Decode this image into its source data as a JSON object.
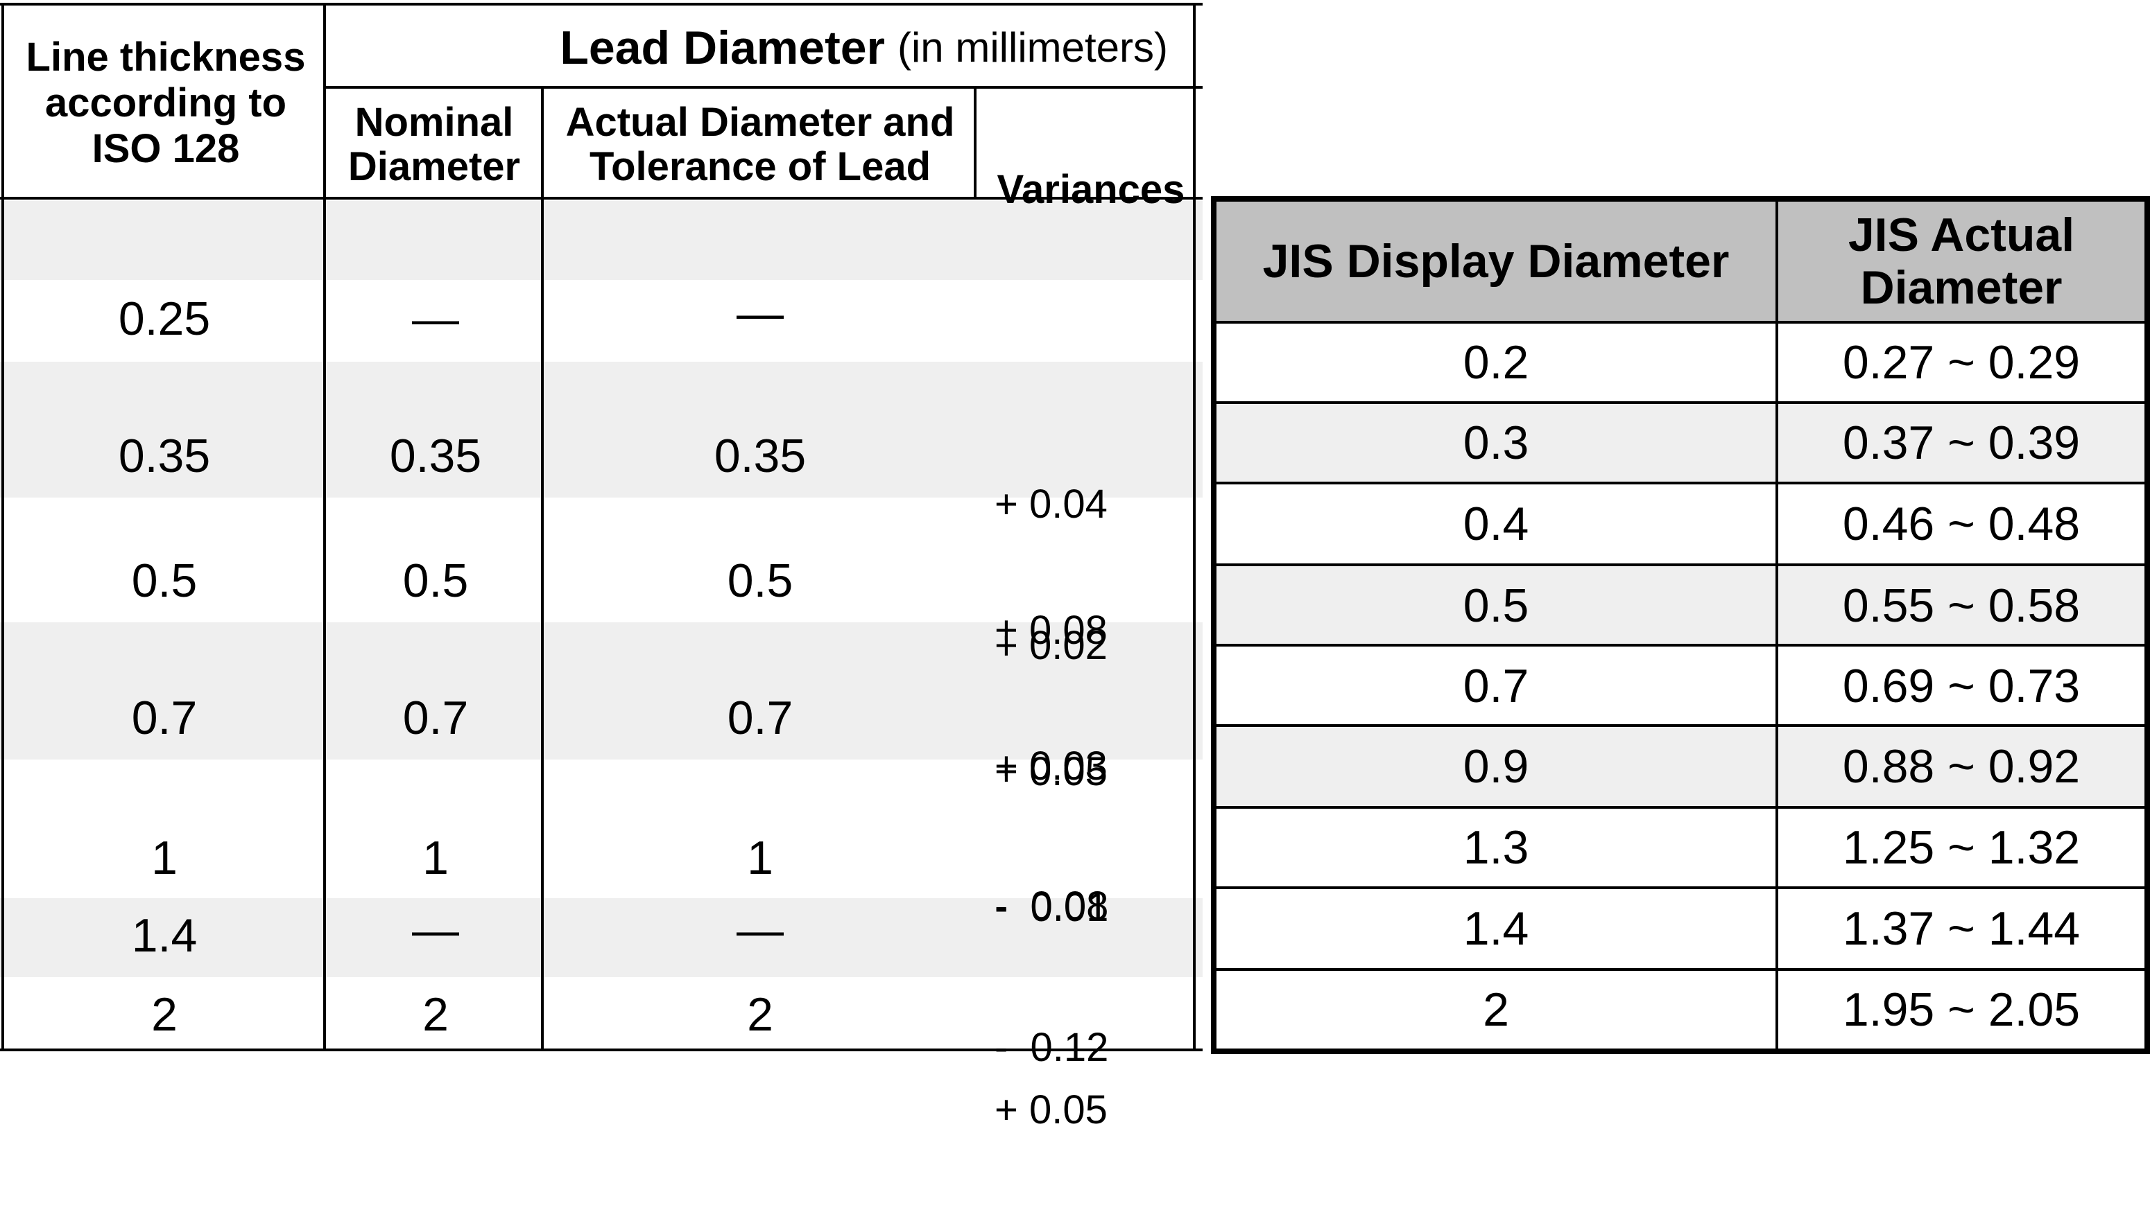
{
  "iso_table": {
    "header": {
      "line_thickness": "Line thickness according to ISO 128",
      "lead_diameter": "Lead Diameter",
      "lead_diameter_unit": "(in millimeters)",
      "nominal": "Nominal Diameter",
      "actual": "Actual Diameter and Tolerance of Lead",
      "variances": "Variances"
    },
    "rows": [
      {
        "line": "0.25",
        "nominal": "—",
        "actual": "—",
        "var1": "",
        "var2": ""
      },
      {
        "line": "0.35",
        "nominal": "0.35",
        "actual": "0.35",
        "var1": "+ 0.04",
        "var2": "+ 0.02"
      },
      {
        "line": "0.5",
        "nominal": "0.5",
        "actual": "0.5",
        "var1": "+ 0.08",
        "var2": "+ 0.05"
      },
      {
        "line": "0.7",
        "nominal": "0.7",
        "actual": "0.7",
        "var1": "+ 0.03",
        "var2": "-  0.01"
      },
      {
        "line": "1",
        "nominal": "1",
        "actual": "1",
        "var1": "-  0.08",
        "var2": "-  0.12"
      },
      {
        "line": "1.4",
        "nominal": "—",
        "actual": "—",
        "var1": "",
        "var2": ""
      },
      {
        "line": "2",
        "nominal": "2",
        "actual": "2",
        "var1": "",
        "var2": "+ 0.05"
      }
    ]
  },
  "jis_table": {
    "header": {
      "display": "JIS Display Diameter",
      "actual": "JIS Actual Diameter"
    },
    "rows": [
      {
        "display": "0.2",
        "actual": "0.27 ~ 0.29"
      },
      {
        "display": "0.3",
        "actual": "0.37 ~ 0.39"
      },
      {
        "display": "0.4",
        "actual": "0.46 ~ 0.48"
      },
      {
        "display": "0.5",
        "actual": "0.55 ~ 0.58"
      },
      {
        "display": "0.7",
        "actual": "0.69 ~ 0.73"
      },
      {
        "display": "0.9",
        "actual": "0.88 ~ 0.92"
      },
      {
        "display": "1.3",
        "actual": "1.25 ~ 1.32"
      },
      {
        "display": "1.4",
        "actual": "1.37 ~ 1.44"
      },
      {
        "display": "2",
        "actual": "1.95 ~ 2.05"
      }
    ],
    "colors": {
      "header_bg": "#c0c0c0",
      "stripe_bg": "#efefef"
    }
  }
}
